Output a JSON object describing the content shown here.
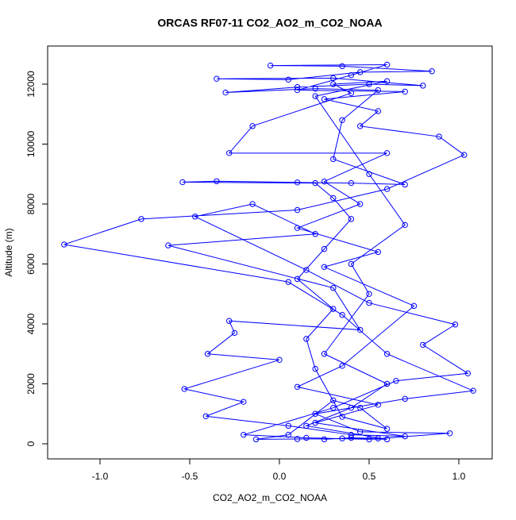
{
  "chart_data": {
    "type": "line",
    "title": "ORCAS RF07-11 CO2_AO2_m_CO2_NOAA",
    "x_label": "CO2_AO2_m_CO2_NOAA",
    "y_label": "Altitude (m)",
    "color": "#0000ff",
    "xlim": [
      -1.292,
      1.186
    ],
    "ylim": [
      -503,
      13271
    ],
    "xticks": [
      {
        "value": -1,
        "label": "-1.0"
      },
      {
        "value": -0.5,
        "label": "-0.5"
      },
      {
        "value": 0,
        "label": "0.0"
      },
      {
        "value": 0.5,
        "label": "0.5"
      },
      {
        "value": 1,
        "label": "1.0"
      }
    ],
    "yticks": [
      0,
      2000,
      4000,
      6000,
      8000,
      10000,
      12000
    ],
    "x": [
      0.25,
      0.4,
      0.55,
      0.1,
      -0.13,
      0.05,
      0.3,
      0.45,
      0.6,
      0.35,
      0.2,
      0.15,
      0.3,
      0.1,
      0.25,
      0.4,
      0.3,
      0.2,
      -0.54,
      -0.35,
      0.1,
      0.4,
      0.7,
      0.3,
      0.35,
      0.55,
      0.2,
      -0.3,
      0.1,
      0.5,
      0.8,
      0.3,
      -0.35,
      0.05,
      0.45,
      0.85,
      0.35,
      -0.05,
      0.6,
      0.4,
      0.1,
      0.7,
      0.25,
      0.55,
      0.45,
      0.89,
      1.03,
      0.6,
      0.1,
      -0.77,
      -1.2,
      0.05,
      0.35,
      0.6,
      1.08,
      0.7,
      0.2,
      0.45,
      0.95,
      0.5,
      0.15,
      -0.2,
      0.3,
      0.65,
      1.05,
      0.8,
      0.98,
      0.5,
      0.15,
      -0.47,
      -0.15,
      0.2,
      -0.62,
      0.3,
      0.45,
      -0.28,
      -0.25,
      -0.4,
      0.0,
      -0.53,
      -0.2,
      -0.41,
      0.05,
      0.4,
      0.7,
      0.2,
      0.55,
      0.1,
      0.35,
      0.75,
      0.25,
      0.55,
      0.1,
      0.45,
      0.25,
      0.6,
      -0.28,
      -0.15,
      0.4,
      0.3,
      0.6,
      0.2,
      0.5,
      0.7,
      0.4,
      0.5,
      0.25,
      0.6,
      0.4,
      0.15,
      0.6,
      0.35
    ],
    "values": [
      150,
      200,
      180,
      160,
      150,
      300,
      1450,
      1200,
      500,
      900,
      2500,
      3500,
      4500,
      5500,
      6500,
      7500,
      8200,
      8700,
      8730,
      8760,
      8720,
      8700,
      8650,
      9500,
      10800,
      11800,
      11850,
      11720,
      11900,
      12000,
      11950,
      12200,
      12180,
      12150,
      12400,
      12430,
      12600,
      12620,
      12650,
      12300,
      11800,
      11750,
      11500,
      11100,
      10600,
      10250,
      9640,
      8500,
      7800,
      7500,
      6650,
      5400,
      4300,
      3000,
      1770,
      1500,
      1000,
      400,
      350,
      150,
      200,
      300,
      1200,
      2100,
      2350,
      3300,
      3980,
      4700,
      5800,
      7580,
      8000,
      7000,
      6620,
      5200,
      3800,
      4100,
      3700,
      3000,
      2800,
      1830,
      1400,
      920,
      600,
      300,
      250,
      700,
      1300,
      1900,
      2600,
      4600,
      5900,
      6400,
      7200,
      8000,
      8750,
      9700,
      9700,
      10600,
      11700,
      12000,
      12100,
      11600,
      9000,
      7300,
      6000,
      5000,
      3000,
      2000,
      1200,
      600,
      150,
      180
    ]
  }
}
